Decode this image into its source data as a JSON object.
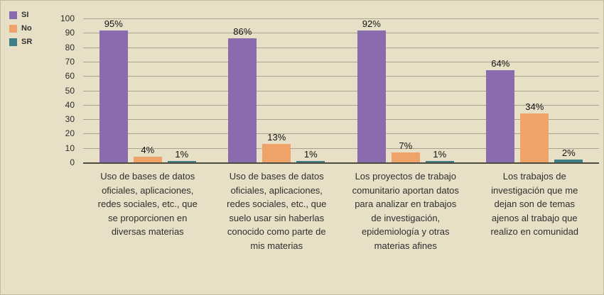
{
  "chart_data": {
    "type": "bar",
    "categories": [
      "Uso de bases de datos oficiales, aplicaciones, redes sociales, etc., que se proporcionen en diversas materias",
      "Uso de bases de datos oficiales, aplicaciones, redes sociales, etc., que suelo usar sin haberlas conocido como parte de mis materias",
      "Los proyectos de trabajo comunitario aportan datos para analizar en trabajos de investigación, epidemiología y otras materias afines",
      "Los trabajos de investigación que me dejan son de temas ajenos al trabajo que realizo en comunidad"
    ],
    "series": [
      {
        "name": "SI",
        "color": "#8a6bad",
        "values": [
          95,
          86,
          92,
          64
        ]
      },
      {
        "name": "No",
        "color": "#f0a369",
        "values": [
          4,
          13,
          7,
          34
        ]
      },
      {
        "name": "SR",
        "color": "#3e7e87",
        "values": [
          1,
          1,
          1,
          2
        ]
      }
    ],
    "title": "",
    "xlabel": "",
    "ylabel": "",
    "ylim": [
      0,
      100
    ],
    "ytick_step": 10,
    "grid": true,
    "legend_position": "top-left",
    "value_label_format": "{v}%",
    "background_color": "#e8e0c6"
  }
}
